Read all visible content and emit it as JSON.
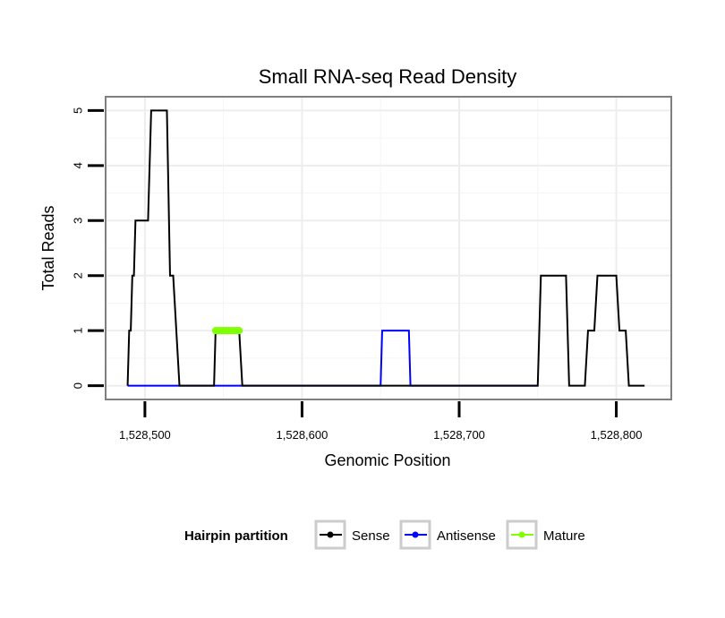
{
  "chart_data": {
    "type": "line",
    "title": "Small RNA-seq Read Density",
    "xlabel": "Genomic Position",
    "ylabel": "Total Reads",
    "xlim": [
      1528475,
      1528835
    ],
    "ylim": [
      -0.25,
      5.25
    ],
    "xticks": [
      1528500,
      1528600,
      1528700,
      1528800
    ],
    "xtick_labels": [
      "1,528,500",
      "1,528,600",
      "1,528,700",
      "1,528,800"
    ],
    "yticks": [
      0,
      1,
      2,
      3,
      4,
      5
    ],
    "ytick_labels": [
      "0",
      "1",
      "2",
      "3",
      "4",
      "5"
    ],
    "grid": true,
    "legend": {
      "title": "Hairpin partition",
      "position": "bottom",
      "entries": [
        {
          "name": "Sense",
          "color": "#000000"
        },
        {
          "name": "Antisense",
          "color": "#0000ff"
        },
        {
          "name": "Mature",
          "color": "#80ff00"
        }
      ]
    },
    "series": [
      {
        "name": "Sense",
        "color": "#000000",
        "x": [
          1528489,
          1528490,
          1528491,
          1528492,
          1528493,
          1528494,
          1528495,
          1528496,
          1528498,
          1528500,
          1528502,
          1528504,
          1528512,
          1528514,
          1528516,
          1528518,
          1528520,
          1528522,
          1528544,
          1528545,
          1528560,
          1528562,
          1528750,
          1528752,
          1528768,
          1528770,
          1528780,
          1528782,
          1528786,
          1528788,
          1528800,
          1528802,
          1528806,
          1528808,
          1528818
        ],
        "y": [
          0,
          1,
          1,
          2,
          2,
          3,
          3,
          3,
          3,
          3,
          3,
          5,
          5,
          5,
          2,
          2,
          1,
          0,
          0,
          1,
          1,
          0,
          0,
          2,
          2,
          0,
          0,
          1,
          1,
          2,
          2,
          1,
          1,
          0,
          0
        ]
      },
      {
        "name": "Antisense",
        "color": "#0000ff",
        "x": [
          1528489,
          1528650,
          1528651,
          1528668,
          1528669,
          1528750
        ],
        "y": [
          0,
          0,
          1,
          1,
          0,
          0
        ]
      },
      {
        "name": "Mature",
        "color": "#80ff00",
        "x": [
          1528545,
          1528560
        ],
        "y": [
          1,
          1
        ]
      }
    ]
  }
}
